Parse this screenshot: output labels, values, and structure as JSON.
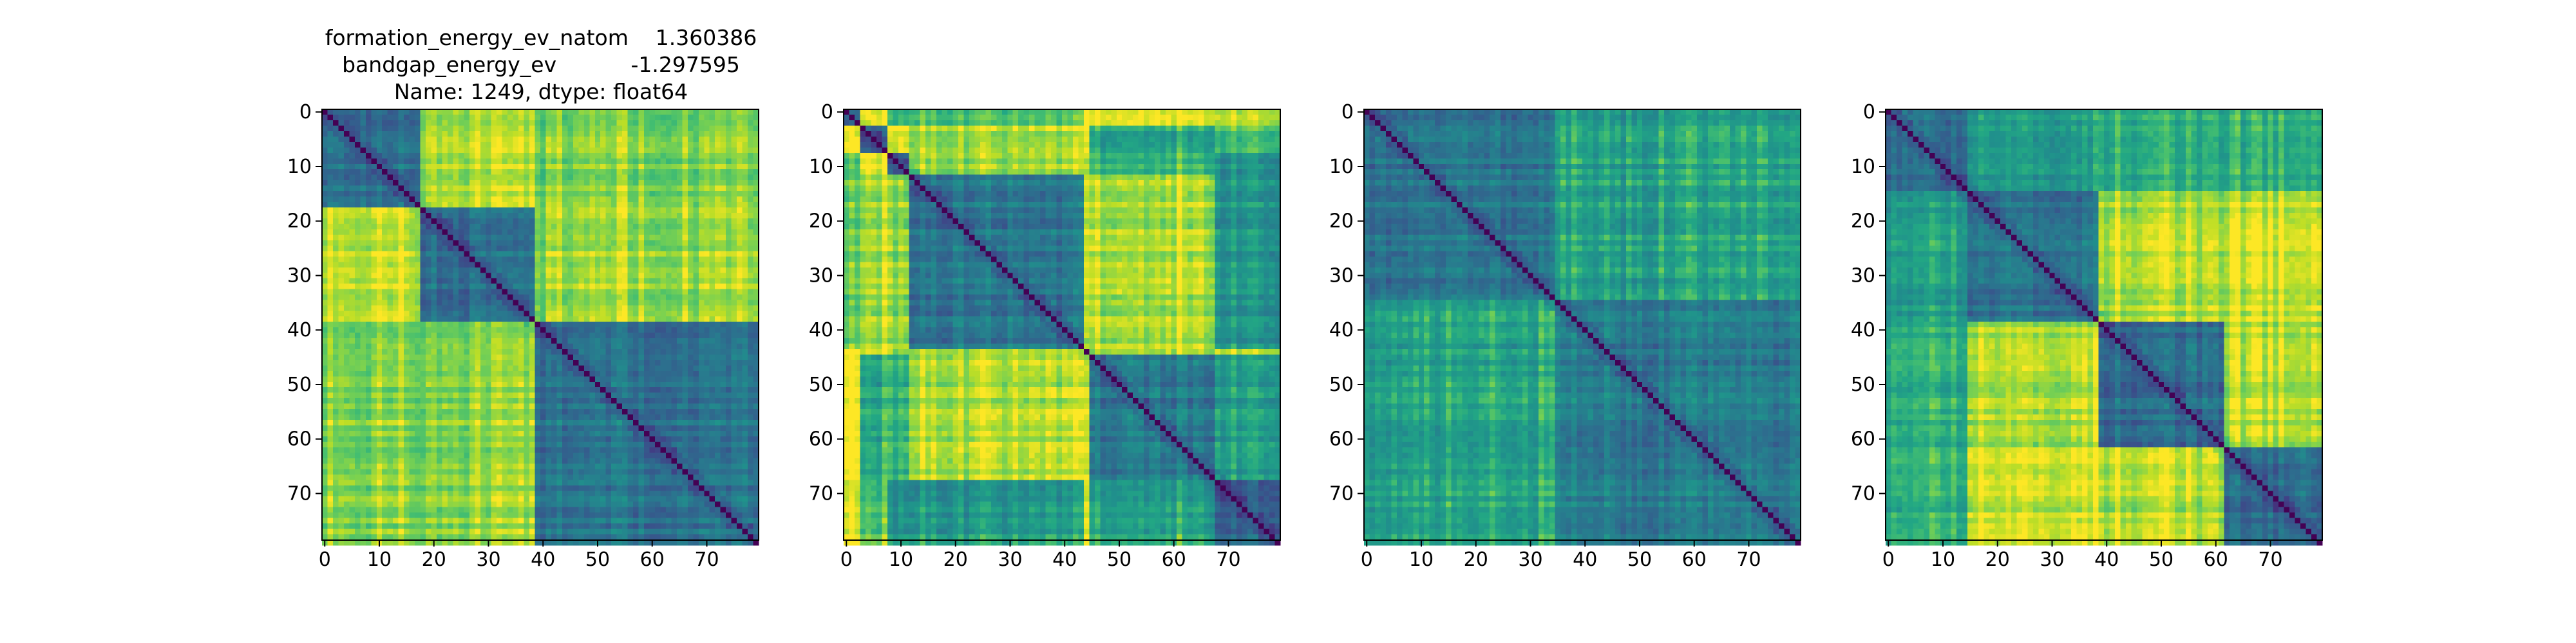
{
  "chart_data": {
    "type": "heatmap",
    "size": 80,
    "colormap": "viridis",
    "color_low": "#440154",
    "color_high": "#fde725",
    "title_lines": [
      "formation_energy_ev_natom    1.360386",
      "bandgap_energy_ev           -1.297595",
      "Name: 1249, dtype: float64"
    ],
    "x_ticks": [
      0,
      10,
      20,
      30,
      40,
      50,
      60,
      70
    ],
    "y_ticks": [
      0,
      10,
      20,
      30,
      40,
      50,
      60,
      70
    ],
    "xlim": [
      0,
      79
    ],
    "ylim": [
      79,
      0
    ],
    "panels": [
      {
        "name": "panel-1",
        "has_title": true,
        "blocks": [
          0,
          18,
          39,
          80
        ],
        "seed": 11
      },
      {
        "name": "panel-2",
        "has_title": false,
        "blocks": [
          0,
          3,
          8,
          12,
          44,
          45,
          68,
          80
        ],
        "seed": 23
      },
      {
        "name": "panel-3",
        "has_title": false,
        "blocks": [
          0,
          35,
          80
        ],
        "seed": 37
      },
      {
        "name": "panel-4",
        "has_title": false,
        "blocks": [
          0,
          15,
          39,
          62,
          80
        ],
        "seed": 53
      }
    ]
  }
}
